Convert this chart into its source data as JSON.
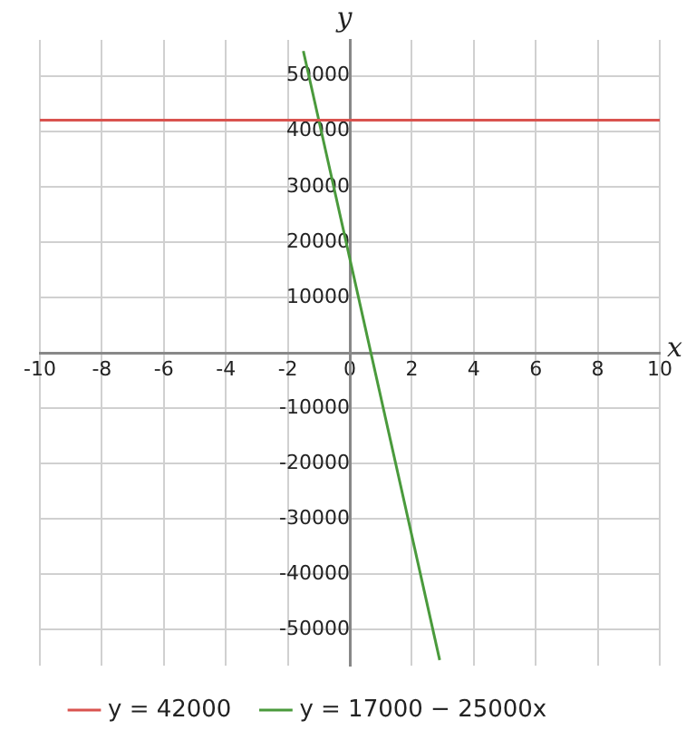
{
  "chart_data": {
    "type": "line",
    "xlabel": "x",
    "ylabel": "y",
    "xlim": [
      -10,
      10
    ],
    "xticks": [
      -10,
      -8,
      -6,
      -4,
      -2,
      0,
      2,
      4,
      6,
      8,
      10
    ],
    "ylim": [
      -56500,
      56500
    ],
    "yticks": [
      -50000,
      -40000,
      -30000,
      -20000,
      -10000,
      {
        "value": 0,
        "label": null
      },
      10000,
      20000,
      30000,
      40000,
      50000
    ],
    "series": [
      {
        "name": "y = 42000",
        "color": "#d9534f",
        "x": [
          -10,
          10
        ],
        "values": [
          42000,
          42000
        ]
      },
      {
        "name": "y = 17000 − 25000x",
        "color": "#4a9a3c",
        "x": [
          -1.5,
          2.9
        ],
        "values": [
          54500,
          -55500
        ]
      }
    ],
    "grid": true,
    "legend": "bottom",
    "marker": "none"
  }
}
